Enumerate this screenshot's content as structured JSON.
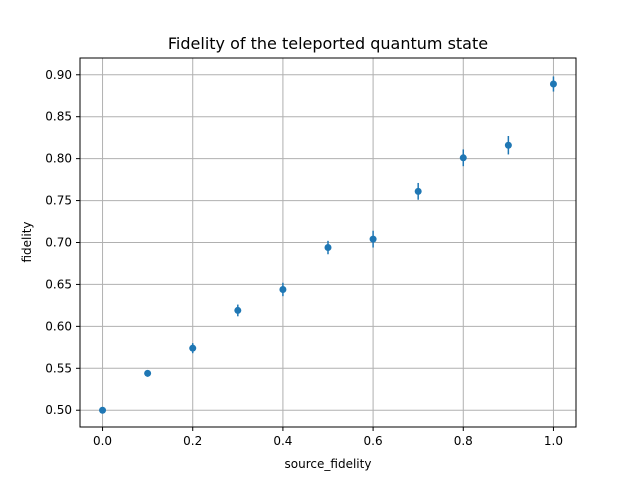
{
  "chart_data": {
    "type": "scatter",
    "title": "Fidelity of the teleported quantum state",
    "xlabel": "source_fidelity",
    "ylabel": "fidelity",
    "xlim": [
      -0.05,
      1.05
    ],
    "ylim": [
      0.48,
      0.92
    ],
    "grid": true,
    "color": "#1f77b4",
    "xticks": [
      0.0,
      0.2,
      0.4,
      0.6,
      0.8,
      1.0
    ],
    "xtick_labels": [
      "0.0",
      "0.2",
      "0.4",
      "0.6",
      "0.8",
      "1.0"
    ],
    "yticks": [
      0.5,
      0.55,
      0.6,
      0.65,
      0.7,
      0.75,
      0.8,
      0.85,
      0.9
    ],
    "ytick_labels": [
      "0.50",
      "0.55",
      "0.60",
      "0.65",
      "0.70",
      "0.75",
      "0.80",
      "0.85",
      "0.90"
    ],
    "series": [
      {
        "x": [
          0.0,
          0.1,
          0.2,
          0.3,
          0.4,
          0.5,
          0.6,
          0.7,
          0.8,
          0.9,
          1.0
        ],
        "y": [
          0.5,
          0.544,
          0.574,
          0.619,
          0.644,
          0.694,
          0.704,
          0.761,
          0.801,
          0.816,
          0.889
        ],
        "yerr": [
          0.002,
          0.004,
          0.006,
          0.007,
          0.008,
          0.008,
          0.01,
          0.01,
          0.01,
          0.011,
          0.009
        ]
      }
    ]
  }
}
